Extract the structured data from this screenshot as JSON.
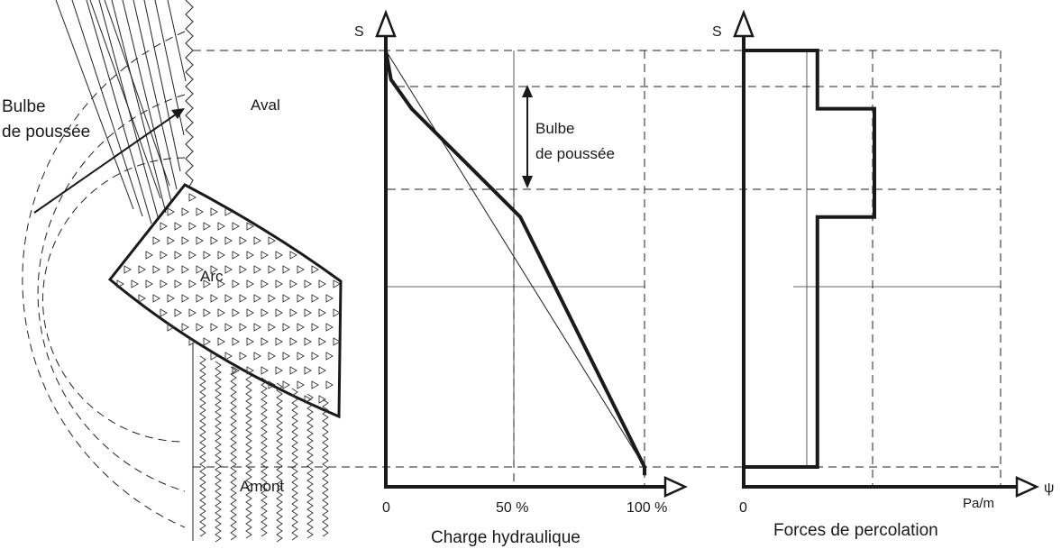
{
  "left": {
    "bulb_label_line1": "Bulbe",
    "bulb_label_line2": "de poussée",
    "aval_label": "Aval",
    "arc_label": "Arc",
    "amont_label": "Amont"
  },
  "chart_charge": {
    "s_label": "S",
    "title": "Charge hydraulique",
    "tick_0": "0",
    "tick_50": "50 %",
    "tick_100": "100 %",
    "bulb_label_line1": "Bulbe",
    "bulb_label_line2": "de poussée"
  },
  "chart_forces": {
    "s_label": "S",
    "title": "Forces de percolation",
    "tick_0": "0",
    "unit_label": "Pa/m",
    "psi_label": "ψ"
  },
  "chart_data": [
    {
      "type": "line",
      "title": "Charge hydraulique",
      "xlabel": "",
      "ylabel": "S",
      "x_tick_labels": [
        "0",
        "50 %",
        "100 %"
      ],
      "series": [
        {
          "x": [
            0,
            2,
            10,
            52,
            100,
            100
          ],
          "y": [
            1.0,
            0.93,
            0.86,
            0.6,
            0.0,
            -0.02
          ]
        },
        {
          "x": [
            0,
            100
          ],
          "y": [
            1.0,
            0.0
          ]
        }
      ],
      "annotations": [
        "Bulbe de poussée"
      ]
    },
    {
      "type": "line",
      "title": "Forces de percolation",
      "xlabel": "Pa/m",
      "ylabel": "S",
      "x_tick_labels": [
        "0"
      ],
      "series": [
        {
          "x": [
            0,
            1,
            1,
            2.6,
            2.6,
            1,
            1,
            0
          ],
          "y": [
            1.0,
            1.0,
            0.86,
            0.86,
            0.6,
            0.6,
            0.0,
            0.0
          ]
        }
      ]
    }
  ]
}
